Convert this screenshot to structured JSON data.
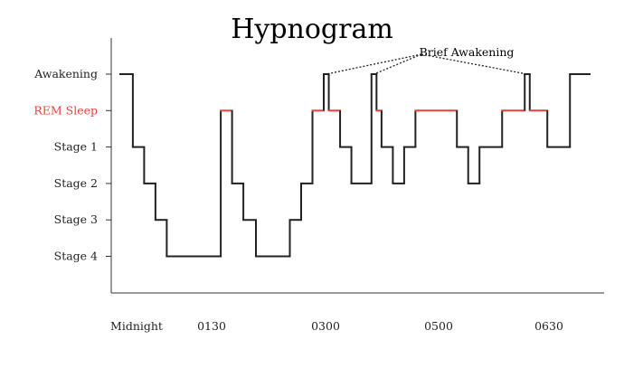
{
  "chart_data": {
    "type": "line",
    "title": "Hypnogram",
    "xlabel": "",
    "ylabel": "",
    "stages": [
      "Awakening",
      "REM Sleep",
      "Stage 1",
      "Stage 2",
      "Stage 3",
      "Stage 4"
    ],
    "stage_colors": {
      "REM Sleep": "#e8413b",
      "default": "#222222"
    },
    "x_ticks": [
      "Midnight",
      "0130",
      "0300",
      "0500",
      "0630"
    ],
    "annotation": "Brief Awakening",
    "grid": false,
    "legend": "none",
    "steps": [
      {
        "from": "00:00",
        "to": "00:10",
        "stage": "Awakening"
      },
      {
        "from": "00:10",
        "to": "00:19",
        "stage": "Stage 1"
      },
      {
        "from": "00:19",
        "to": "00:28",
        "stage": "Stage 2"
      },
      {
        "from": "00:28",
        "to": "00:37",
        "stage": "Stage 3"
      },
      {
        "from": "00:37",
        "to": "01:20",
        "stage": "Stage 4"
      },
      {
        "from": "01:20",
        "to": "01:29",
        "stage": "REM Sleep"
      },
      {
        "from": "01:29",
        "to": "01:38",
        "stage": "Stage 2"
      },
      {
        "from": "01:38",
        "to": "01:48",
        "stage": "Stage 3"
      },
      {
        "from": "01:48",
        "to": "02:15",
        "stage": "Stage 4"
      },
      {
        "from": "02:15",
        "to": "02:24",
        "stage": "Stage 3"
      },
      {
        "from": "02:24",
        "to": "02:33",
        "stage": "Stage 2"
      },
      {
        "from": "02:33",
        "to": "02:42",
        "stage": "REM Sleep"
      },
      {
        "from": "02:42",
        "to": "02:46",
        "stage": "Awakening"
      },
      {
        "from": "02:46",
        "to": "02:55",
        "stage": "REM Sleep"
      },
      {
        "from": "02:55",
        "to": "03:04",
        "stage": "Stage 1"
      },
      {
        "from": "03:04",
        "to": "03:20",
        "stage": "Stage 2"
      },
      {
        "from": "03:20",
        "to": "03:24",
        "stage": "Awakening"
      },
      {
        "from": "03:24",
        "to": "03:28",
        "stage": "REM Sleep"
      },
      {
        "from": "03:28",
        "to": "03:37",
        "stage": "Stage 1"
      },
      {
        "from": "03:37",
        "to": "03:46",
        "stage": "Stage 2"
      },
      {
        "from": "03:46",
        "to": "03:55",
        "stage": "Stage 1"
      },
      {
        "from": "03:55",
        "to": "04:28",
        "stage": "REM Sleep"
      },
      {
        "from": "04:28",
        "to": "04:37",
        "stage": "Stage 1"
      },
      {
        "from": "04:37",
        "to": "04:46",
        "stage": "Stage 2"
      },
      {
        "from": "04:46",
        "to": "05:04",
        "stage": "Stage 1"
      },
      {
        "from": "05:04",
        "to": "05:22",
        "stage": "REM Sleep"
      },
      {
        "from": "05:22",
        "to": "05:26",
        "stage": "Awakening"
      },
      {
        "from": "05:26",
        "to": "05:40",
        "stage": "REM Sleep"
      },
      {
        "from": "05:40",
        "to": "05:58",
        "stage": "Stage 1"
      },
      {
        "from": "05:58",
        "to": "06:28",
        "stage": "Awakening"
      }
    ],
    "brief_awakenings": [
      "02:44",
      "03:22",
      "05:24"
    ]
  }
}
